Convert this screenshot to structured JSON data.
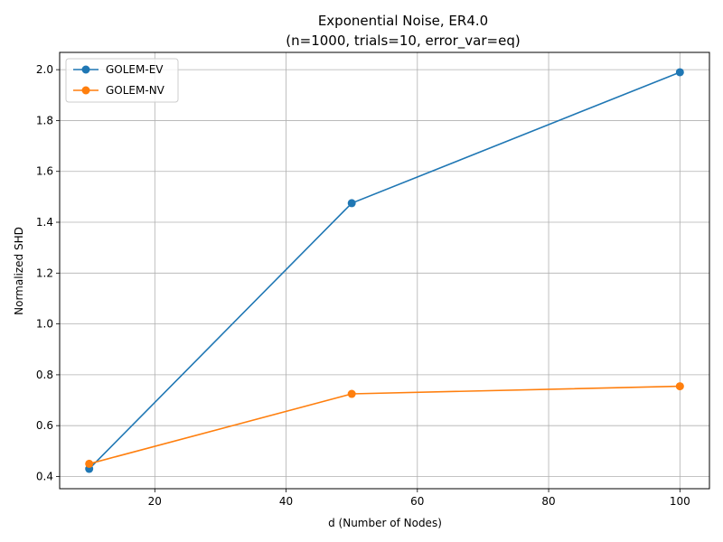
{
  "chart_data": {
    "type": "line",
    "title": "Exponential Noise, ER4.0",
    "subtitle": "(n=1000, trials=10, error_var=eq)",
    "xlabel": "d (Number of Nodes)",
    "ylabel": "Normalized SHD",
    "x": [
      10,
      50,
      100
    ],
    "xlim": [
      5.5,
      104.5
    ],
    "ylim": [
      0.352,
      2.068
    ],
    "xticks": [
      20,
      40,
      60,
      80,
      100
    ],
    "yticks": [
      0.4,
      0.6,
      0.8,
      1.0,
      1.2,
      1.4,
      1.6,
      1.8,
      2.0
    ],
    "xtick_labels": [
      "20",
      "40",
      "60",
      "80",
      "100"
    ],
    "ytick_labels": [
      "0.4",
      "0.6",
      "0.8",
      "1.0",
      "1.2",
      "1.4",
      "1.6",
      "1.8",
      "2.0"
    ],
    "grid": true,
    "legend_position": "top-left",
    "series": [
      {
        "name": "GOLEM-EV",
        "values": [
          0.43,
          1.475,
          1.99
        ],
        "color": "#1f77b4",
        "marker": "circle"
      },
      {
        "name": "GOLEM-NV",
        "values": [
          0.45,
          0.725,
          0.755
        ],
        "color": "#ff7f0e",
        "marker": "circle"
      }
    ]
  }
}
